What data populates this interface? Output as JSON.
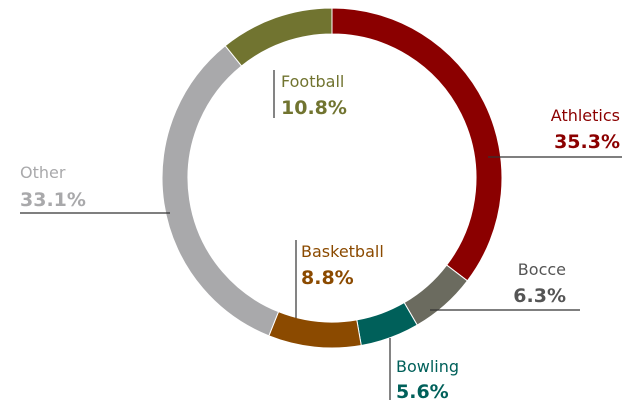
{
  "chart_data": {
    "type": "pie",
    "donut": true,
    "title": "",
    "slices": [
      {
        "label": "Athletics",
        "value": 35.3,
        "value_label": "35.3%",
        "color": "#8b0000"
      },
      {
        "label": "Bocce",
        "value": 6.3,
        "value_label": "6.3%",
        "color": "#6b6b5f"
      },
      {
        "label": "Bowling",
        "value": 5.6,
        "value_label": "5.6%",
        "color": "#00605a"
      },
      {
        "label": "Basketball",
        "value": 8.8,
        "value_label": "8.8%",
        "color": "#8b4a00"
      },
      {
        "label": "Other",
        "value": 33.1,
        "value_label": "33.1%",
        "color": "#a9a9ab"
      },
      {
        "label": "Football",
        "value": 10.8,
        "value_label": "10.8%",
        "color": "#717430"
      }
    ],
    "label_colors": {
      "Athletics": "#8b0000",
      "Bocce": "#555555",
      "Bowling": "#00605a",
      "Basketball": "#8b4a00",
      "Other": "#a9a9ab",
      "Football": "#717430"
    }
  }
}
